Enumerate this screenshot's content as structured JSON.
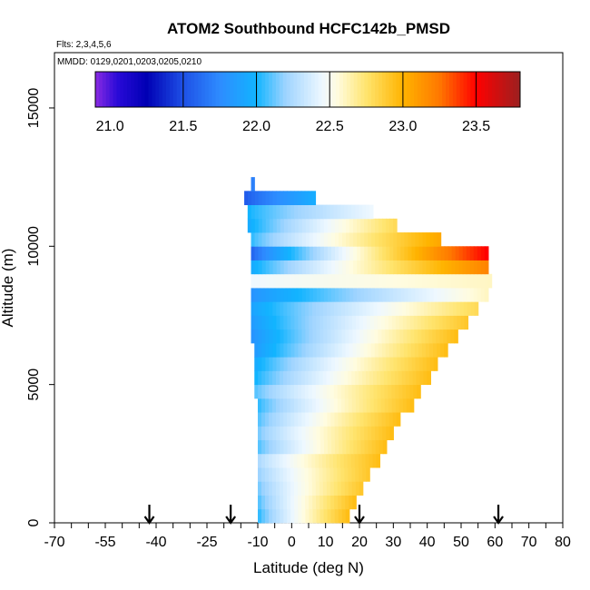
{
  "chart_data": {
    "type": "heatmap",
    "title": "ATOM2 Southbound HCFC142b_PMSD",
    "flights_label": "Flts: 2,3,4,5,6",
    "dates_label": "MMDD: 0129,0201,0203,0205,0210",
    "xlabel": "Latitude (deg N)",
    "ylabel": "Altitude (m)",
    "xlim": [
      -70,
      80
    ],
    "ylim": [
      0,
      17000
    ],
    "x_ticks": [
      -70,
      -55,
      -40,
      -25,
      -10,
      0,
      10,
      20,
      30,
      40,
      50,
      60,
      70,
      80
    ],
    "x_minor_step": 5,
    "y_ticks": [
      0,
      5000,
      10000,
      15000
    ],
    "colorbar": {
      "range": [
        20.9,
        23.8
      ],
      "ticks": [
        21.0,
        21.5,
        22.0,
        22.5,
        23.0,
        23.5
      ],
      "tick_labels": [
        "21.0",
        "21.5",
        "22.0",
        "22.5",
        "23.0",
        "23.5"
      ],
      "dividers": [
        21.5,
        22.0,
        22.5,
        23.0,
        23.5
      ],
      "stops": [
        {
          "v": 20.9,
          "color": "#8a2be2"
        },
        {
          "v": 21.05,
          "color": "#2a0ad8"
        },
        {
          "v": 21.25,
          "color": "#0000b4"
        },
        {
          "v": 21.5,
          "color": "#1e50e6"
        },
        {
          "v": 21.75,
          "color": "#2e8cff"
        },
        {
          "v": 22.0,
          "color": "#12b4ff"
        },
        {
          "v": 22.2,
          "color": "#9fd4ff"
        },
        {
          "v": 22.45,
          "color": "#eef8ff"
        },
        {
          "v": 22.55,
          "color": "#fffce0"
        },
        {
          "v": 22.75,
          "color": "#ffe46e"
        },
        {
          "v": 23.0,
          "color": "#ffb400"
        },
        {
          "v": 23.25,
          "color": "#ff7800"
        },
        {
          "v": 23.5,
          "color": "#ff0000"
        },
        {
          "v": 23.8,
          "color": "#9b2020"
        }
      ]
    },
    "arrows_latitude": [
      -42,
      -18,
      20,
      61
    ],
    "curtain": {
      "band_height_m": 500,
      "bands": [
        {
          "alt": 250,
          "lat_min": -10,
          "lat_max": 17,
          "v_start": 22.05,
          "v_end": 22.95
        },
        {
          "alt": 750,
          "lat_min": -10,
          "lat_max": 19,
          "v_start": 22.1,
          "v_end": 22.95
        },
        {
          "alt": 1250,
          "lat_min": -10,
          "lat_max": 21,
          "v_start": 22.15,
          "v_end": 22.9
        },
        {
          "alt": 1750,
          "lat_min": -10,
          "lat_max": 23,
          "v_start": 22.2,
          "v_end": 22.9
        },
        {
          "alt": 2250,
          "lat_min": -10,
          "lat_max": 26,
          "v_start": 22.25,
          "v_end": 22.95
        },
        {
          "alt": 2750,
          "lat_min": -10,
          "lat_max": 28,
          "v_start": 22.1,
          "v_end": 22.95
        },
        {
          "alt": 3250,
          "lat_min": -10,
          "lat_max": 30,
          "v_start": 22.15,
          "v_end": 22.95
        },
        {
          "alt": 3750,
          "lat_min": -10,
          "lat_max": 32,
          "v_start": 22.1,
          "v_end": 22.95
        },
        {
          "alt": 4250,
          "lat_min": -10,
          "lat_max": 36,
          "v_start": 22.05,
          "v_end": 22.95
        },
        {
          "alt": 4750,
          "lat_min": -11,
          "lat_max": 38,
          "v_start": 22.1,
          "v_end": 22.95
        },
        {
          "alt": 5250,
          "lat_min": -11,
          "lat_max": 41,
          "v_start": 22.0,
          "v_end": 22.95
        },
        {
          "alt": 5750,
          "lat_min": -11,
          "lat_max": 43,
          "v_start": 21.95,
          "v_end": 22.95
        },
        {
          "alt": 6250,
          "lat_min": -11,
          "lat_max": 46,
          "v_start": 21.85,
          "v_end": 22.95
        },
        {
          "alt": 6750,
          "lat_min": -12,
          "lat_max": 49,
          "v_start": 21.8,
          "v_end": 22.95
        },
        {
          "alt": 7250,
          "lat_min": -12,
          "lat_max": 52,
          "v_start": 21.85,
          "v_end": 22.9
        },
        {
          "alt": 7750,
          "lat_min": -12,
          "lat_max": 55,
          "v_start": 21.9,
          "v_end": 22.8
        },
        {
          "alt": 8250,
          "lat_min": -12,
          "lat_max": 58,
          "v_start": 21.8,
          "v_end": 22.6
        },
        {
          "alt": 8750,
          "lat_min": -12,
          "lat_max": 59,
          "v_start": 22.45,
          "v_end": 22.6
        },
        {
          "alt": 9250,
          "lat_min": -12,
          "lat_max": 58,
          "v_start": 21.95,
          "v_end": 23.2
        },
        {
          "alt": 9750,
          "lat_min": -12,
          "lat_max": 58,
          "v_start": 21.6,
          "v_end": 23.5
        },
        {
          "alt": 10250,
          "lat_min": -12,
          "lat_max": 44,
          "v_start": 22.05,
          "v_end": 23.05
        },
        {
          "alt": 10750,
          "lat_min": -13,
          "lat_max": 31,
          "v_start": 21.95,
          "v_end": 22.8
        },
        {
          "alt": 11250,
          "lat_min": -13,
          "lat_max": 24,
          "v_start": 22.0,
          "v_end": 22.45
        },
        {
          "alt": 11750,
          "lat_min": -14,
          "lat_max": 7,
          "v_start": 21.55,
          "v_end": 21.95
        },
        {
          "alt": 12250,
          "lat_min": -12,
          "lat_max": -11,
          "v_start": 21.7,
          "v_end": 21.7
        }
      ]
    }
  }
}
